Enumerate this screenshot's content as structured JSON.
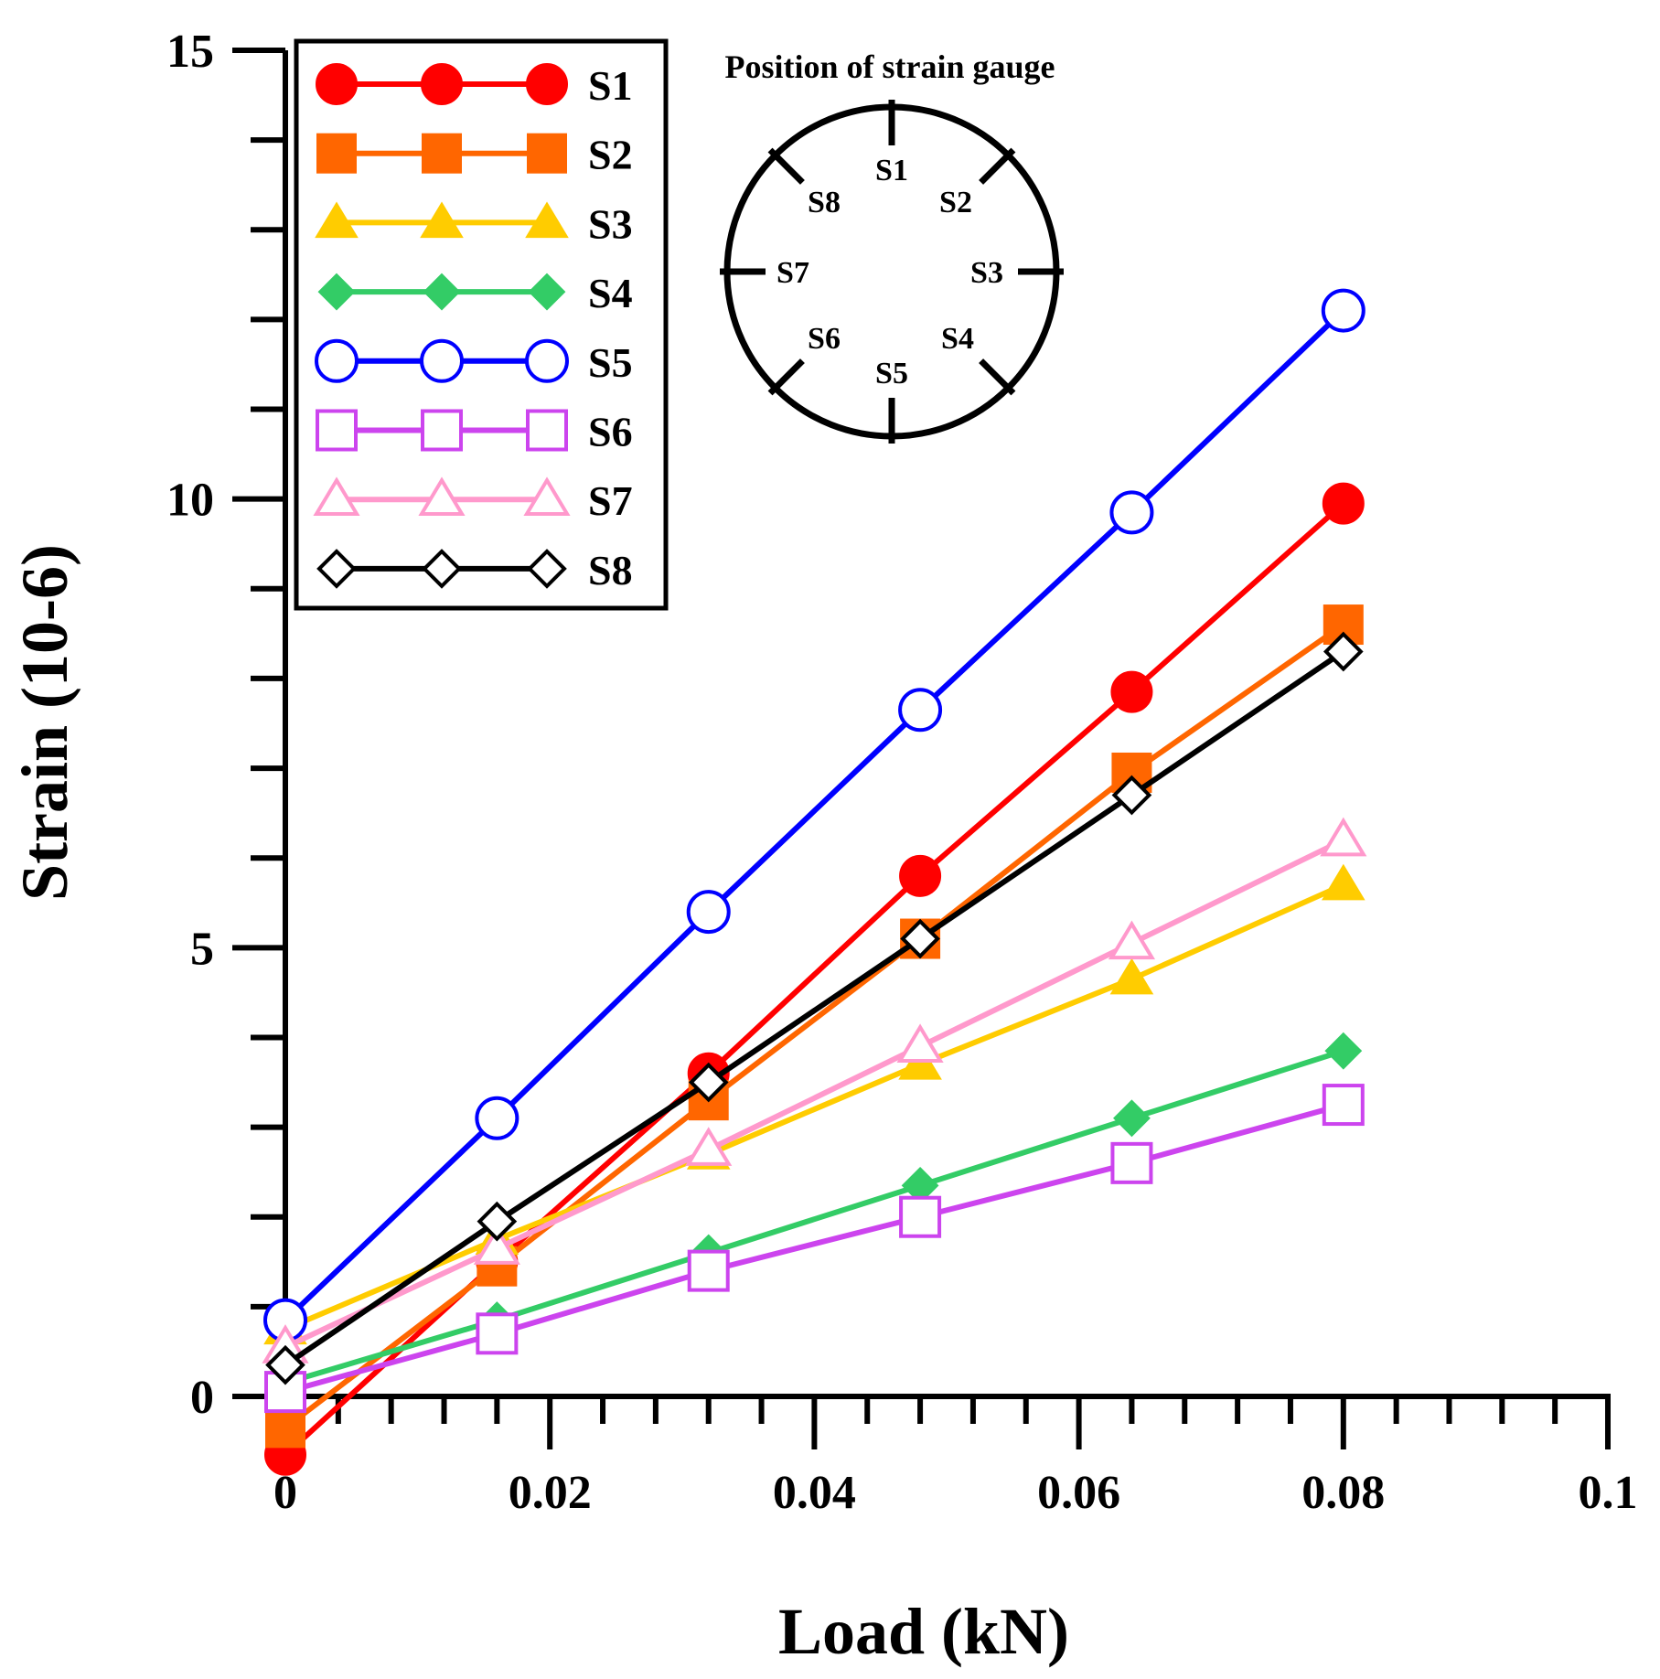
{
  "chart_data": {
    "type": "line",
    "title": "",
    "xlabel": "Load (kN)",
    "ylabel": "Strain (10-6)",
    "xlim": [
      0,
      0.1
    ],
    "ylim": [
      -0.6,
      15
    ],
    "x_ticks": [
      "0",
      "0.02",
      "0.04",
      "0.06",
      "0.08",
      "0.1"
    ],
    "y_ticks": [
      "0",
      "5",
      "10",
      "15"
    ],
    "x": [
      0,
      0.016,
      0.032,
      0.048,
      0.064,
      0.08
    ],
    "series": [
      {
        "name": "S1",
        "color": "#ff0000",
        "marker": "circle-filled",
        "values": [
          -0.65,
          1.5,
          3.6,
          5.8,
          7.85,
          9.95
        ]
      },
      {
        "name": "S2",
        "color": "#ff6600",
        "marker": "square-filled",
        "values": [
          -0.35,
          1.45,
          3.3,
          5.1,
          6.95,
          8.6
        ]
      },
      {
        "name": "S3",
        "color": "#ffcc00",
        "marker": "triangle-filled",
        "values": [
          0.75,
          1.75,
          2.7,
          3.7,
          4.65,
          5.7
        ]
      },
      {
        "name": "S4",
        "color": "#33cc66",
        "marker": "diamond-filled",
        "values": [
          0.15,
          0.85,
          1.6,
          2.35,
          3.1,
          3.85
        ]
      },
      {
        "name": "S5",
        "color": "#0000ff",
        "marker": "circle-open",
        "values": [
          0.85,
          3.1,
          5.4,
          7.65,
          9.85,
          12.1
        ]
      },
      {
        "name": "S6",
        "color": "#cc44ee",
        "marker": "square-open",
        "values": [
          0.05,
          0.7,
          1.4,
          2.0,
          2.6,
          3.25
        ]
      },
      {
        "name": "S7",
        "color": "#ff99cc",
        "marker": "triangle-open",
        "values": [
          0.55,
          1.65,
          2.75,
          3.9,
          5.05,
          6.2
        ]
      },
      {
        "name": "S8",
        "color": "#000000",
        "marker": "diamond-open",
        "values": [
          0.35,
          1.95,
          3.5,
          5.1,
          6.7,
          8.3
        ]
      }
    ],
    "legend_position": "top-left",
    "grid": false,
    "inset": {
      "title": "Position of strain gauge",
      "labels": [
        "S1",
        "S2",
        "S3",
        "S4",
        "S5",
        "S6",
        "S7",
        "S8"
      ]
    }
  }
}
